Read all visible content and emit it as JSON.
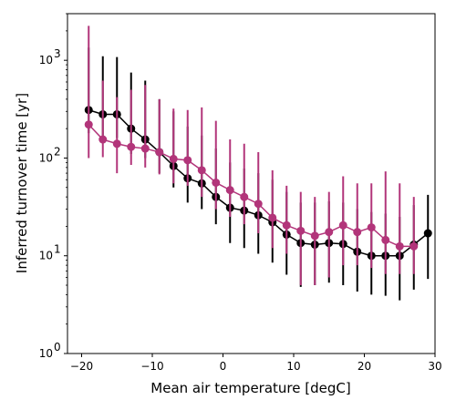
{
  "chart_data": {
    "type": "line",
    "title": "",
    "xlabel": "Mean air temperature [degC]",
    "ylabel": "Inferred turnover time [yr]",
    "xlim": [
      -22,
      30
    ],
    "ylim": [
      1,
      3000
    ],
    "yscale": "log",
    "grid": false,
    "x_ticks": [
      -20,
      -10,
      0,
      10,
      20,
      30
    ],
    "x_tick_labels": [
      "−20",
      "−10",
      "0",
      "10",
      "20",
      "30"
    ],
    "y_ticks": [
      1,
      10,
      100,
      1000
    ],
    "y_tick_labels": [
      "10",
      "10",
      "10",
      "10"
    ],
    "y_tick_exponents": [
      "0",
      "1",
      "2",
      "3"
    ],
    "series": [
      {
        "color": "#000000",
        "x": [
          -19,
          -17,
          -15,
          -13,
          -11,
          -9,
          -7,
          -5,
          -3,
          -1,
          1,
          3,
          5,
          7,
          9,
          11,
          13,
          15,
          17,
          19,
          21,
          23,
          25,
          27,
          29
        ],
        "y": [
          310,
          280,
          280,
          200,
          155,
          115,
          83,
          62,
          55,
          40,
          31,
          29,
          26,
          22,
          16.5,
          13.5,
          13,
          13.5,
          13.2,
          11,
          10,
          10,
          10,
          13,
          17
        ],
        "err_low": [
          180,
          160,
          160,
          110,
          100,
          70,
          50,
          35,
          30,
          21,
          13.5,
          12,
          10.5,
          8.5,
          6.4,
          4.8,
          5,
          5.3,
          5,
          4.3,
          4,
          3.9,
          3.5,
          4.5,
          5.8
        ],
        "err_high": [
          1350,
          1100,
          1080,
          750,
          620,
          400,
          300,
          210,
          170,
          125,
          90,
          78,
          70,
          60,
          45,
          35,
          35,
          36,
          35,
          30,
          28,
          27,
          25,
          33,
          42
        ]
      },
      {
        "color": "#b2357a",
        "x": [
          -19,
          -17,
          -15,
          -13,
          -11,
          -9,
          -7,
          -5,
          -3,
          -1,
          1,
          3,
          5,
          7,
          9,
          11,
          13,
          15,
          17,
          19,
          21,
          23,
          25,
          27
        ],
        "y": [
          220,
          155,
          140,
          130,
          125,
          115,
          98,
          95,
          75,
          56,
          47,
          40,
          34,
          24.5,
          20.5,
          18,
          16,
          17.5,
          20.5,
          17.5,
          19.5,
          14.5,
          12.5,
          12.5
        ],
        "err_low": [
          100,
          102,
          70,
          85,
          80,
          68,
          55,
          52,
          40,
          30,
          25,
          21,
          17,
          12,
          10.5,
          5,
          5,
          6,
          8,
          8,
          7.5,
          6.5,
          6.5,
          6.5
        ],
        "err_high": [
          2250,
          620,
          420,
          500,
          560,
          400,
          320,
          310,
          330,
          240,
          155,
          140,
          115,
          75,
          52,
          45,
          40,
          45,
          65,
          55,
          55,
          73,
          55,
          40
        ]
      }
    ]
  }
}
